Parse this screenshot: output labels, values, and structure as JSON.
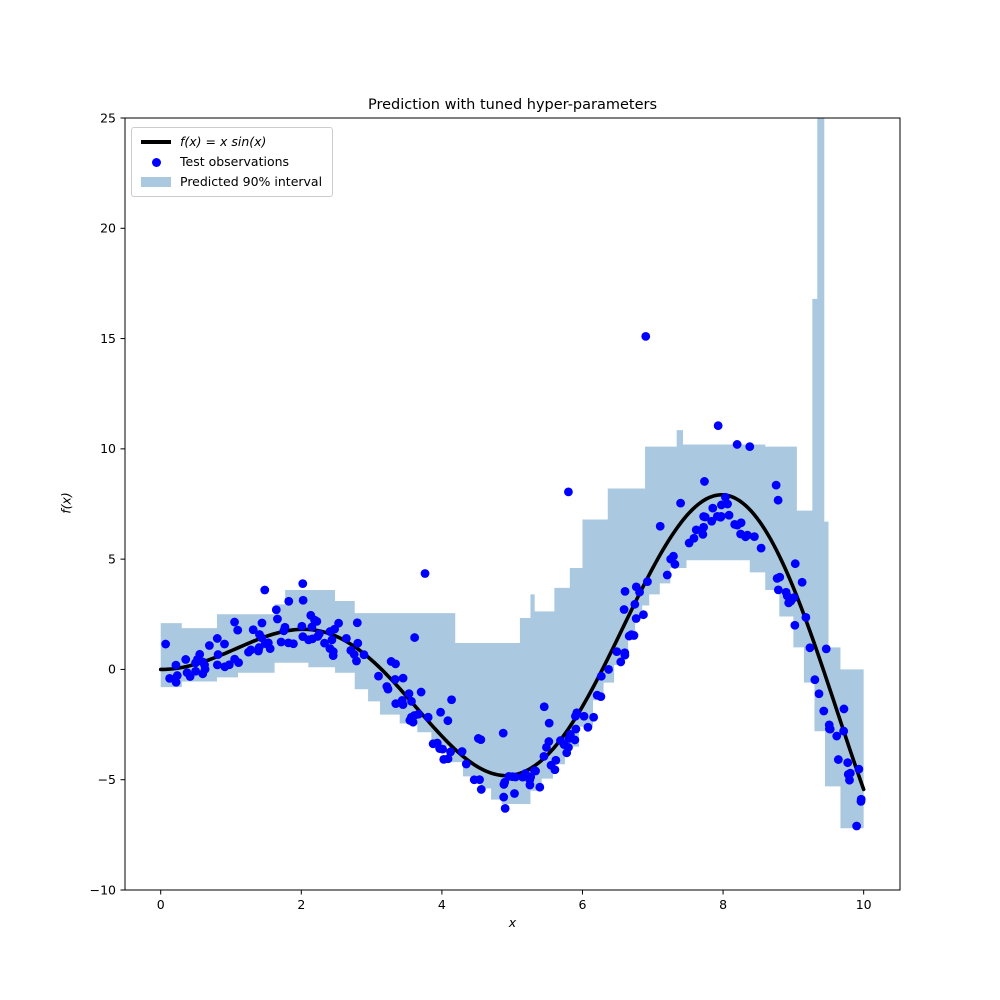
{
  "chart_data": {
    "type": "composite",
    "title": "Prediction with tuned hyper-parameters",
    "xlabel": "x",
    "ylabel": "f(x)",
    "xlim": [
      -0.508,
      10.517
    ],
    "ylim": [
      -10,
      25
    ],
    "grid": false,
    "xticks": {
      "values": [
        0,
        2,
        4,
        6,
        8,
        10
      ],
      "labels": [
        "0",
        "2",
        "4",
        "6",
        "8",
        "10"
      ]
    },
    "yticks": {
      "values": [
        -10,
        -5,
        0,
        5,
        10,
        15,
        20,
        25
      ],
      "labels": [
        "−10",
        "−5",
        "0",
        "5",
        "10",
        "15",
        "20",
        "25"
      ]
    },
    "legend": {
      "position": "upper left",
      "labels": [
        "f(x) = x sin(x)",
        "Test observations",
        "Predicted 90% interval"
      ]
    },
    "series": [
      {
        "name": "f(x) = x sin(x)",
        "type": "line",
        "color": "#000000",
        "linewidth": 3.6,
        "formula": "y = x*sin(x)",
        "x_range": [
          0,
          10
        ]
      },
      {
        "name": "Test observations",
        "type": "scatter",
        "color": "#0000ff",
        "marker_radius_px": 4.4,
        "generation": {
          "count": 230,
          "seed": 20,
          "x_min": 0.03,
          "x_max": 9.97,
          "mean_formula": "x*sin(x)",
          "noise": "lognormal: exp(N(0,sigma)) - exp(sigma^2/2), sigma = 0.4 + x/12",
          "sigma_a": 0.4,
          "sigma_b": 0.08333
        },
        "notable_points": [
          [
            0.07,
            1.15
          ],
          [
            1.48,
            3.6
          ],
          [
            3.76,
            4.35
          ],
          [
            4.9,
            -6.3
          ],
          [
            5.8,
            8.05
          ],
          [
            6.9,
            15.1
          ],
          [
            7.93,
            11.05
          ],
          [
            8.2,
            10.2
          ],
          [
            8.38,
            10.1
          ],
          [
            9.9,
            -7.1
          ]
        ]
      },
      {
        "name": "Predicted 90% interval",
        "type": "band",
        "color": "#aac9e0",
        "bins": [
          [
            0.0,
            0.3,
            -0.8,
            2.1
          ],
          [
            0.3,
            0.8,
            -0.55,
            1.87
          ],
          [
            0.8,
            1.1,
            -0.36,
            2.5
          ],
          [
            1.1,
            1.62,
            -0.15,
            2.5
          ],
          [
            1.62,
            1.77,
            0.3,
            2.95
          ],
          [
            1.77,
            2.1,
            0.3,
            3.6
          ],
          [
            2.1,
            2.48,
            0.1,
            3.6
          ],
          [
            2.48,
            2.76,
            -0.15,
            3.1
          ],
          [
            2.76,
            2.95,
            -0.9,
            2.55
          ],
          [
            2.95,
            3.12,
            -1.45,
            2.55
          ],
          [
            3.12,
            3.4,
            -2.05,
            2.55
          ],
          [
            3.4,
            3.65,
            -2.45,
            2.55
          ],
          [
            3.65,
            3.85,
            -2.85,
            2.55
          ],
          [
            3.85,
            4.1,
            -3.5,
            2.55
          ],
          [
            4.1,
            4.19,
            -4.2,
            2.55
          ],
          [
            4.19,
            4.3,
            -4.2,
            1.2
          ],
          [
            4.3,
            4.55,
            -4.85,
            1.2
          ],
          [
            4.55,
            4.7,
            -5.4,
            1.2
          ],
          [
            4.7,
            4.85,
            -5.9,
            1.2
          ],
          [
            4.85,
            5.11,
            -6.1,
            1.2
          ],
          [
            5.11,
            5.26,
            -6.1,
            2.33
          ],
          [
            5.26,
            5.32,
            -5.5,
            3.4
          ],
          [
            5.32,
            5.42,
            -5.5,
            2.63
          ],
          [
            5.42,
            5.58,
            -4.95,
            2.63
          ],
          [
            5.58,
            5.6,
            -4.3,
            2.63
          ],
          [
            5.6,
            5.75,
            -4.3,
            3.7
          ],
          [
            5.75,
            5.82,
            -3.5,
            3.7
          ],
          [
            5.82,
            5.95,
            -3.5,
            4.6
          ],
          [
            5.95,
            6.0,
            -2.6,
            4.6
          ],
          [
            6.0,
            6.15,
            -2.6,
            6.8
          ],
          [
            6.15,
            6.3,
            -1.4,
            6.8
          ],
          [
            6.3,
            6.36,
            -0.6,
            6.8
          ],
          [
            6.36,
            6.45,
            -0.6,
            8.2
          ],
          [
            6.45,
            6.55,
            0.2,
            8.2
          ],
          [
            6.55,
            6.65,
            0.9,
            8.2
          ],
          [
            6.65,
            6.75,
            1.6,
            8.2
          ],
          [
            6.75,
            6.85,
            2.3,
            8.2
          ],
          [
            6.85,
            6.89,
            2.9,
            8.2
          ],
          [
            6.89,
            6.95,
            2.9,
            10.1
          ],
          [
            6.95,
            7.1,
            3.4,
            10.1
          ],
          [
            7.1,
            7.25,
            3.9,
            10.1
          ],
          [
            7.25,
            7.34,
            4.6,
            10.1
          ],
          [
            7.34,
            7.43,
            4.6,
            10.85
          ],
          [
            7.43,
            7.48,
            4.6,
            10.2
          ],
          [
            7.48,
            8.38,
            4.95,
            10.2
          ],
          [
            8.38,
            8.6,
            4.4,
            10.2
          ],
          [
            8.6,
            8.8,
            3.6,
            10.1
          ],
          [
            8.8,
            9.0,
            2.4,
            10.1
          ],
          [
            9.0,
            9.05,
            1.0,
            10.1
          ],
          [
            9.05,
            9.15,
            1.0,
            7.2
          ],
          [
            9.15,
            9.27,
            -0.6,
            7.2
          ],
          [
            9.27,
            9.3,
            -0.6,
            16.8
          ],
          [
            9.3,
            9.34,
            -2.8,
            16.8
          ],
          [
            9.34,
            9.44,
            -2.8,
            25.6
          ],
          [
            9.44,
            9.45,
            -2.8,
            6.7
          ],
          [
            9.45,
            9.5,
            -5.3,
            6.7
          ],
          [
            9.5,
            9.67,
            -5.3,
            1.0
          ],
          [
            9.67,
            10.0,
            -7.2,
            0.0
          ]
        ]
      }
    ]
  }
}
